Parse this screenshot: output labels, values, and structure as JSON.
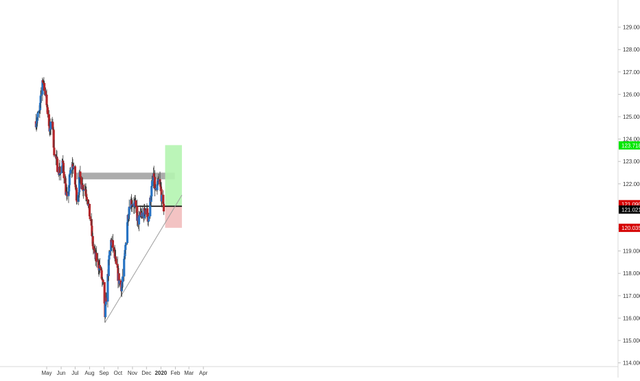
{
  "chart_data": {
    "type": "candlestick",
    "title": "",
    "xlabel": "",
    "ylabel": "",
    "ylim": [
      113.6,
      130.0
    ],
    "x_ticks": [
      {
        "label": "May",
        "date": "2019-05-01"
      },
      {
        "label": "Jun",
        "date": "2019-06-01"
      },
      {
        "label": "Jul",
        "date": "2019-07-01"
      },
      {
        "label": "Aug",
        "date": "2019-08-01"
      },
      {
        "label": "Sep",
        "date": "2019-09-01"
      },
      {
        "label": "Oct",
        "date": "2019-10-01"
      },
      {
        "label": "Nov",
        "date": "2019-11-01"
      },
      {
        "label": "Dec",
        "date": "2019-12-01"
      },
      {
        "label": "2020",
        "date": "2020-01-01"
      },
      {
        "label": "Feb",
        "date": "2020-02-01"
      },
      {
        "label": "Mar",
        "date": "2020-03-01"
      },
      {
        "label": "Apr",
        "date": "2020-04-01"
      }
    ],
    "y_ticks": [
      "114.000",
      "115.000",
      "116.000",
      "117.000",
      "118.000",
      "119.000",
      "120.000",
      "121.000",
      "122.000",
      "123.000",
      "124.000",
      "125.000",
      "126.000",
      "127.000",
      "128.000",
      "129.000"
    ],
    "price_path": [
      [
        "2019-04-08",
        124.8
      ],
      [
        "2019-04-16",
        125.2
      ],
      [
        "2019-04-22",
        126.7
      ],
      [
        "2019-04-26",
        126.4
      ],
      [
        "2019-05-01",
        125.6
      ],
      [
        "2019-05-08",
        124.3
      ],
      [
        "2019-05-13",
        124.9
      ],
      [
        "2019-05-17",
        123.5
      ],
      [
        "2019-05-24",
        122.8
      ],
      [
        "2019-05-31",
        122.5
      ],
      [
        "2019-06-05",
        122.9
      ],
      [
        "2019-06-10",
        121.9
      ],
      [
        "2019-06-14",
        121.2
      ],
      [
        "2019-06-20",
        122.4
      ],
      [
        "2019-06-26",
        122.9
      ],
      [
        "2019-07-01",
        122.0
      ],
      [
        "2019-07-06",
        121.2
      ],
      [
        "2019-07-11",
        122.3
      ],
      [
        "2019-07-17",
        121.9
      ],
      [
        "2019-07-23",
        121.8
      ],
      [
        "2019-07-29",
        121.2
      ],
      [
        "2019-08-04",
        120.1
      ],
      [
        "2019-08-10",
        118.9
      ],
      [
        "2019-08-18",
        118.5
      ],
      [
        "2019-08-24",
        118.2
      ],
      [
        "2019-08-30",
        117.4
      ],
      [
        "2019-09-03",
        116.1
      ],
      [
        "2019-09-09",
        117.8
      ],
      [
        "2019-09-15",
        119.5
      ],
      [
        "2019-09-20",
        119.2
      ],
      [
        "2019-09-27",
        118.3
      ],
      [
        "2019-10-03",
        117.7
      ],
      [
        "2019-10-09",
        117.4
      ],
      [
        "2019-10-15",
        118.6
      ],
      [
        "2019-10-20",
        120.2
      ],
      [
        "2019-10-26",
        121.2
      ],
      [
        "2019-11-01",
        121.2
      ],
      [
        "2019-11-07",
        121.0
      ],
      [
        "2019-11-13",
        120.3
      ],
      [
        "2019-11-19",
        120.6
      ],
      [
        "2019-11-25",
        120.6
      ],
      [
        "2019-11-30",
        120.9
      ],
      [
        "2019-12-05",
        120.4
      ],
      [
        "2019-12-11",
        121.6
      ],
      [
        "2019-12-16",
        122.4
      ],
      [
        "2019-12-21",
        121.5
      ],
      [
        "2019-12-27",
        122.1
      ],
      [
        "2020-01-01",
        121.7
      ],
      [
        "2020-01-05",
        120.8
      ],
      [
        "2020-01-08",
        121.0
      ]
    ],
    "candles": [],
    "zones": [
      {
        "name": "resistance-zone",
        "color": "#9e9e9e",
        "x0": "2019-07-01",
        "x1": "2020-01-31",
        "y0": 122.2,
        "y1": 122.5
      },
      {
        "name": "take-profit-zone",
        "color": "#b4f4b0",
        "x0": "2020-01-10",
        "x1": "2020-02-15",
        "y0": 121.02,
        "y1": 123.73
      },
      {
        "name": "stop-loss-zone",
        "color": "#f2bdbd",
        "x0": "2020-01-10",
        "x1": "2020-02-15",
        "y0": 120.035,
        "y1": 121.02
      }
    ],
    "lines": [
      {
        "name": "support-line",
        "color": "#000000",
        "x0": "2019-11-01",
        "x1": "2020-02-15",
        "y0": 121.0,
        "y1": 121.0
      },
      {
        "name": "trendline",
        "color": "#9e9e9e",
        "x0": "2019-09-03",
        "x1": "2020-02-15",
        "y0": 115.8,
        "y1": 121.5
      }
    ],
    "price_labels": [
      {
        "name": "target-price-label",
        "value": "123.718",
        "y": 123.718,
        "bg": "#00e600",
        "fg": "#ffffff"
      },
      {
        "name": "entry-price-label",
        "value": "121.090",
        "y": 121.09,
        "bg": "#d50000",
        "fg": "#ffffff"
      },
      {
        "name": "last-price-label",
        "value": "121.021",
        "y": 120.85,
        "bg": "#000000",
        "fg": "#ffffff"
      },
      {
        "name": "stop-price-label",
        "value": "120.035",
        "y": 120.035,
        "bg": "#d50000",
        "fg": "#ffffff"
      }
    ],
    "colors": {
      "up": "#2874c4",
      "down": "#b3262a",
      "axis": "#d9d9d9",
      "text": "#333333"
    }
  }
}
